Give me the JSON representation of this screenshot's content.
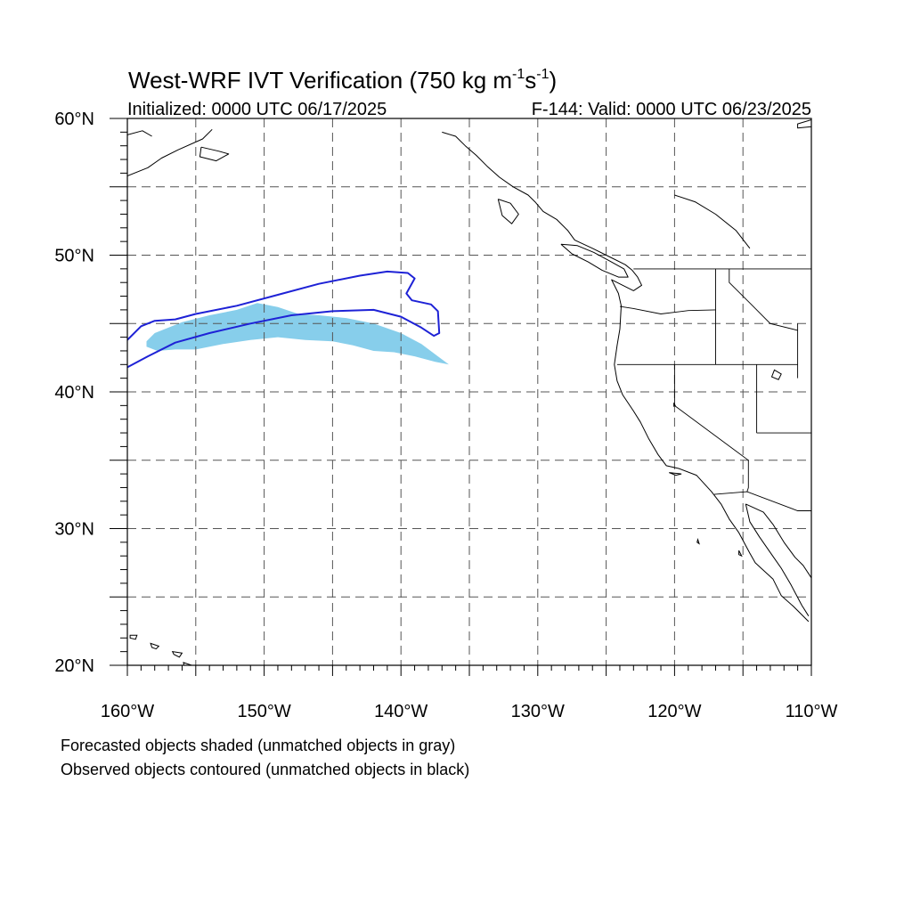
{
  "title": {
    "main": "West-WRF IVT Verification (750 kg m",
    "sup1": "-1",
    "mid": "s",
    "sup2": "-1",
    "close": ")"
  },
  "subtitle_left": "Initialized: 0000 UTC 06/17/2025",
  "subtitle_right": "F-144: Valid: 0000 UTC 06/23/2025",
  "footer": {
    "line1": "Forecasted objects shaded (unmatched objects in gray)",
    "line2": "Observed objects contoured (unmatched objects in black)"
  },
  "chart_data": {
    "type": "map",
    "projection": "cylindrical-equidistant",
    "lon_range": [
      -160,
      -110
    ],
    "lat_range": [
      20,
      60
    ],
    "grid": true,
    "grid_interval_deg": 5,
    "lat_ticks": [
      {
        "value": 60,
        "label": "60°N"
      },
      {
        "value": 50,
        "label": "50°N"
      },
      {
        "value": 40,
        "label": "40°N"
      },
      {
        "value": 30,
        "label": "30°N"
      },
      {
        "value": 20,
        "label": "20°N"
      }
    ],
    "lon_ticks": [
      {
        "value": -160,
        "label": "160°W"
      },
      {
        "value": -150,
        "label": "150°W"
      },
      {
        "value": -140,
        "label": "140°W"
      },
      {
        "value": -130,
        "label": "130°W"
      },
      {
        "value": -120,
        "label": "120°W"
      },
      {
        "value": -110,
        "label": "110°W"
      }
    ],
    "colors": {
      "forecast_fill": "#87ceeb",
      "observed_contour": "#1e22d6",
      "coastline": "#000000",
      "grid": "#555555"
    },
    "forecast_object": {
      "fill": "#87ceeb",
      "points": [
        [
          -158.6,
          43.7
        ],
        [
          -158.0,
          44.3
        ],
        [
          -156.0,
          45.1
        ],
        [
          -154.0,
          45.6
        ],
        [
          -152.0,
          46.0
        ],
        [
          -150.5,
          46.5
        ],
        [
          -149.0,
          46.2
        ],
        [
          -147.5,
          45.7
        ],
        [
          -146.0,
          45.6
        ],
        [
          -144.0,
          45.4
        ],
        [
          -142.0,
          45.0
        ],
        [
          -140.0,
          44.3
        ],
        [
          -138.5,
          43.5
        ],
        [
          -137.3,
          42.6
        ],
        [
          -136.5,
          42.0
        ],
        [
          -137.5,
          42.2
        ],
        [
          -139.0,
          42.6
        ],
        [
          -140.5,
          42.9
        ],
        [
          -142.0,
          43.0
        ],
        [
          -143.5,
          43.4
        ],
        [
          -145.0,
          43.7
        ],
        [
          -147.0,
          43.8
        ],
        [
          -149.0,
          44.0
        ],
        [
          -151.0,
          43.8
        ],
        [
          -153.0,
          43.5
        ],
        [
          -155.0,
          43.1
        ],
        [
          -156.5,
          43.1
        ],
        [
          -157.8,
          43.0
        ],
        [
          -158.6,
          43.3
        ]
      ]
    },
    "observed_object": {
      "color": "#1e22d6",
      "points": [
        [
          -160.0,
          43.8
        ],
        [
          -159.0,
          44.8
        ],
        [
          -158.0,
          45.2
        ],
        [
          -156.5,
          45.3
        ],
        [
          -155.0,
          45.7
        ],
        [
          -152.0,
          46.3
        ],
        [
          -149.0,
          47.1
        ],
        [
          -146.0,
          47.9
        ],
        [
          -143.0,
          48.5
        ],
        [
          -141.0,
          48.8
        ],
        [
          -139.5,
          48.7
        ],
        [
          -139.0,
          48.3
        ],
        [
          -139.6,
          47.2
        ],
        [
          -139.2,
          46.7
        ],
        [
          -137.8,
          46.4
        ],
        [
          -137.3,
          45.9
        ],
        [
          -137.2,
          44.3
        ],
        [
          -137.6,
          44.1
        ],
        [
          -138.5,
          44.7
        ],
        [
          -140.0,
          45.5
        ],
        [
          -142.0,
          46.0
        ],
        [
          -145.0,
          45.9
        ],
        [
          -148.0,
          45.6
        ],
        [
          -151.0,
          45.0
        ],
        [
          -154.0,
          44.3
        ],
        [
          -156.5,
          43.6
        ],
        [
          -158.5,
          42.6
        ],
        [
          -160.0,
          41.8
        ]
      ]
    },
    "coastlines": [
      {
        "name": "north-america-west-coast",
        "points": [
          [
            -137.0,
            59.0
          ],
          [
            -136.0,
            58.7
          ],
          [
            -135.3,
            58.0
          ],
          [
            -134.5,
            57.3
          ],
          [
            -133.7,
            56.5
          ],
          [
            -132.8,
            55.7
          ],
          [
            -131.8,
            55.0
          ],
          [
            -130.7,
            54.4
          ],
          [
            -130.2,
            53.9
          ],
          [
            -129.6,
            53.2
          ],
          [
            -128.6,
            52.6
          ],
          [
            -127.8,
            51.8
          ],
          [
            -127.3,
            51.1
          ],
          [
            -126.0,
            50.5
          ],
          [
            -124.8,
            49.9
          ],
          [
            -123.6,
            49.3
          ],
          [
            -123.1,
            48.9
          ],
          [
            -122.7,
            48.4
          ],
          [
            -122.4,
            47.8
          ],
          [
            -123.0,
            47.4
          ],
          [
            -124.6,
            48.2
          ],
          [
            -124.1,
            47.2
          ],
          [
            -123.9,
            46.3
          ],
          [
            -124.0,
            44.6
          ],
          [
            -124.2,
            43.4
          ],
          [
            -124.4,
            42.0
          ],
          [
            -124.2,
            40.8
          ],
          [
            -123.8,
            39.8
          ],
          [
            -123.0,
            38.6
          ],
          [
            -122.5,
            37.8
          ],
          [
            -121.9,
            36.6
          ],
          [
            -121.2,
            35.4
          ],
          [
            -120.6,
            34.6
          ],
          [
            -119.7,
            34.4
          ],
          [
            -118.4,
            33.9
          ],
          [
            -117.3,
            32.7
          ],
          [
            -116.6,
            31.8
          ],
          [
            -116.0,
            30.7
          ],
          [
            -115.3,
            29.7
          ],
          [
            -114.5,
            28.2
          ],
          [
            -114.1,
            27.5
          ],
          [
            -112.8,
            26.3
          ],
          [
            -112.2,
            25.1
          ],
          [
            -111.3,
            24.3
          ],
          [
            -110.2,
            23.2
          ]
        ]
      },
      {
        "name": "gulf-of-california-east",
        "points": [
          [
            -114.8,
            31.8
          ],
          [
            -113.5,
            31.2
          ],
          [
            -112.8,
            30.3
          ],
          [
            -112.0,
            29.0
          ],
          [
            -111.2,
            27.9
          ],
          [
            -110.6,
            27.3
          ],
          [
            -110.0,
            26.4
          ]
        ]
      },
      {
        "name": "baja-peninsula-east",
        "points": [
          [
            -114.8,
            31.8
          ],
          [
            -114.5,
            30.5
          ],
          [
            -113.8,
            29.4
          ],
          [
            -112.9,
            28.1
          ],
          [
            -112.2,
            27.1
          ],
          [
            -111.5,
            25.9
          ],
          [
            -110.7,
            24.4
          ],
          [
            -110.2,
            23.6
          ]
        ]
      },
      {
        "name": "vancouver-island",
        "points": [
          [
            -128.3,
            50.8
          ],
          [
            -127.5,
            50.1
          ],
          [
            -126.3,
            49.5
          ],
          [
            -125.3,
            48.9
          ],
          [
            -124.1,
            48.4
          ],
          [
            -123.4,
            48.4
          ],
          [
            -123.7,
            49.0
          ],
          [
            -124.8,
            49.6
          ],
          [
            -125.9,
            50.2
          ],
          [
            -127.1,
            50.7
          ],
          [
            -128.3,
            50.8
          ]
        ]
      },
      {
        "name": "haida-gwaii",
        "points": [
          [
            -132.9,
            54.1
          ],
          [
            -132.0,
            53.8
          ],
          [
            -131.4,
            53.0
          ],
          [
            -131.9,
            52.3
          ],
          [
            -132.6,
            52.9
          ],
          [
            -132.9,
            54.1
          ]
        ]
      },
      {
        "name": "alaska-gulf-coast",
        "points": [
          [
            -160.0,
            55.8
          ],
          [
            -158.5,
            56.4
          ],
          [
            -157.5,
            57.1
          ],
          [
            -156.3,
            57.7
          ],
          [
            -154.5,
            58.5
          ],
          [
            -153.8,
            59.2
          ]
        ]
      },
      {
        "name": "kodiak-island",
        "points": [
          [
            -154.6,
            57.9
          ],
          [
            -153.3,
            57.6
          ],
          [
            -152.6,
            57.4
          ],
          [
            -153.5,
            56.9
          ],
          [
            -154.7,
            57.2
          ],
          [
            -154.6,
            57.9
          ]
        ]
      },
      {
        "name": "alaska-peninsula-top",
        "points": [
          [
            -160.0,
            58.8
          ],
          [
            -158.9,
            59.1
          ],
          [
            -158.2,
            58.7
          ]
        ]
      },
      {
        "name": "hudson-bay-edge",
        "points": [
          [
            -110.0,
            59.9
          ],
          [
            -111.0,
            59.6
          ],
          [
            -111.0,
            59.3
          ],
          [
            -110.0,
            59.4
          ]
        ]
      },
      {
        "name": "great-slave-region",
        "points": [
          [
            -120.0,
            54.4
          ],
          [
            -118.5,
            53.9
          ],
          [
            -117.0,
            53.0
          ],
          [
            -115.5,
            51.8
          ],
          [
            -114.5,
            50.5
          ]
        ]
      }
    ],
    "islands": [
      {
        "name": "hawaii-kauai",
        "points": [
          [
            -159.8,
            22.2
          ],
          [
            -159.3,
            22.2
          ],
          [
            -159.4,
            21.9
          ],
          [
            -159.8,
            22.0
          ],
          [
            -159.8,
            22.2
          ]
        ]
      },
      {
        "name": "hawaii-oahu",
        "points": [
          [
            -158.3,
            21.6
          ],
          [
            -157.7,
            21.4
          ],
          [
            -157.9,
            21.2
          ],
          [
            -158.2,
            21.3
          ],
          [
            -158.3,
            21.6
          ]
        ]
      },
      {
        "name": "hawaii-maui",
        "points": [
          [
            -156.7,
            21.0
          ],
          [
            -156.0,
            20.9
          ],
          [
            -156.2,
            20.6
          ],
          [
            -156.6,
            20.8
          ],
          [
            -156.7,
            21.0
          ]
        ]
      },
      {
        "name": "hawaii-big-island",
        "points": [
          [
            -155.9,
            20.2
          ],
          [
            -155.0,
            19.9
          ],
          [
            -155.2,
            19.5
          ],
          [
            -155.8,
            19.6
          ],
          [
            -155.9,
            20.2
          ]
        ]
      },
      {
        "name": "channel-islands",
        "points": [
          [
            -120.4,
            34.1
          ],
          [
            -119.5,
            34.0
          ],
          [
            -119.9,
            33.9
          ],
          [
            -120.4,
            34.1
          ]
        ]
      },
      {
        "name": "guadalupe-island",
        "points": [
          [
            -118.3,
            29.2
          ],
          [
            -118.2,
            28.9
          ],
          [
            -118.35,
            29.0
          ],
          [
            -118.3,
            29.2
          ]
        ]
      },
      {
        "name": "cedros-island",
        "points": [
          [
            -115.3,
            28.4
          ],
          [
            -115.1,
            28.0
          ],
          [
            -115.3,
            28.1
          ],
          [
            -115.3,
            28.4
          ]
        ]
      }
    ],
    "borders": [
      {
        "name": "us-canada-border",
        "points": [
          [
            -123.0,
            49.0
          ],
          [
            -110.0,
            49.0
          ]
        ]
      },
      {
        "name": "us-mexico-border",
        "points": [
          [
            -117.1,
            32.5
          ],
          [
            -114.7,
            32.7
          ],
          [
            -111.0,
            31.3
          ],
          [
            -110.0,
            31.3
          ]
        ]
      },
      {
        "name": "washington-oregon",
        "points": [
          [
            -124.0,
            46.25
          ],
          [
            -123.0,
            46.1
          ],
          [
            -121.0,
            45.7
          ],
          [
            -119.0,
            45.95
          ],
          [
            -117.0,
            46.0
          ]
        ]
      },
      {
        "name": "washington-idaho",
        "points": [
          [
            -117.0,
            49.0
          ],
          [
            -117.0,
            42.0
          ]
        ]
      },
      {
        "name": "oregon-california-nevada",
        "points": [
          [
            -124.2,
            42.0
          ],
          [
            -111.0,
            42.0
          ]
        ]
      },
      {
        "name": "idaho-montana",
        "points": [
          [
            -116.0,
            49.0
          ],
          [
            -116.0,
            48.0
          ],
          [
            -114.5,
            46.5
          ],
          [
            -113.0,
            45.0
          ],
          [
            -111.0,
            44.5
          ]
        ]
      },
      {
        "name": "california-nevada",
        "points": [
          [
            -120.0,
            42.0
          ],
          [
            -120.0,
            39.0
          ],
          [
            -114.6,
            35.0
          ]
        ]
      },
      {
        "name": "nevada-utah",
        "points": [
          [
            -114.0,
            42.0
          ],
          [
            -114.0,
            37.0
          ]
        ]
      },
      {
        "name": "utah-arizona",
        "points": [
          [
            -114.0,
            37.0
          ],
          [
            -110.0,
            37.0
          ]
        ]
      },
      {
        "name": "arizona-california",
        "points": [
          [
            -114.6,
            35.0
          ],
          [
            -114.6,
            33.0
          ],
          [
            -114.7,
            32.7
          ]
        ]
      },
      {
        "name": "montana-wyoming",
        "points": [
          [
            -111.0,
            45.0
          ],
          [
            -111.0,
            41.0
          ]
        ]
      }
    ],
    "lakes": [
      {
        "name": "great-salt-lake",
        "points": [
          [
            -112.7,
            41.6
          ],
          [
            -112.2,
            41.3
          ],
          [
            -112.4,
            40.9
          ],
          [
            -112.9,
            41.1
          ],
          [
            -112.7,
            41.6
          ]
        ]
      },
      {
        "name": "lake-tahoe",
        "points": [
          [
            -120.05,
            39.2
          ],
          [
            -119.95,
            39.0
          ],
          [
            -120.05,
            38.95
          ],
          [
            -120.05,
            39.2
          ]
        ]
      }
    ]
  }
}
